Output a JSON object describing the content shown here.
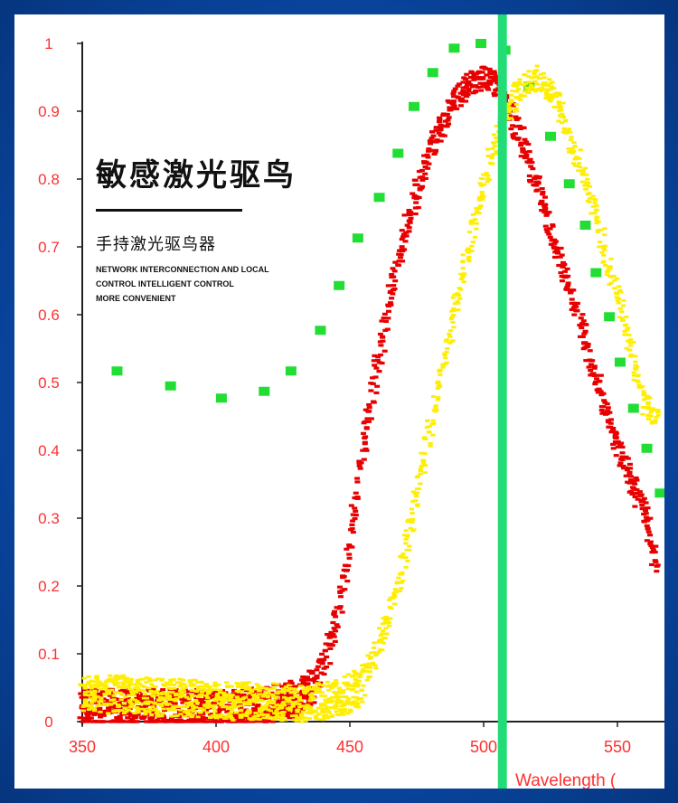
{
  "overlay": {
    "title": "敏感激光驱鸟",
    "subtitle": "手持激光驱鸟器",
    "tagline_1": "NETWORK INTERCONNECTION AND LOCAL",
    "tagline_2": "CONTROL INTELLIGENT CONTROL",
    "tagline_3": "MORE CONVENIENT"
  },
  "colors": {
    "frame": "#0a4aa8",
    "axis_text": "#ff3030",
    "series_red": "#e80000",
    "series_yellow": "#ffee00",
    "series_green": "#22dd33",
    "laser_line": "#22dd77"
  },
  "chart_data": {
    "type": "scatter",
    "xlabel": "Wavelength (",
    "ylabel": "",
    "xlim": [
      350,
      565
    ],
    "ylim": [
      0,
      1
    ],
    "x_ticks": [
      "350",
      "400",
      "450",
      "500",
      "550"
    ],
    "y_ticks": [
      "0",
      "0.1",
      "0.2",
      "0.3",
      "0.4",
      "0.5",
      "0.6",
      "0.7",
      "0.8",
      "0.9",
      "1"
    ],
    "grid": false,
    "vertical_marker_x": 507,
    "series": [
      {
        "color": "#22dd33",
        "marker": "square",
        "points": [
          [
            363,
            0.517
          ],
          [
            383,
            0.495
          ],
          [
            402,
            0.477
          ],
          [
            418,
            0.487
          ],
          [
            428,
            0.517
          ],
          [
            439,
            0.577
          ],
          [
            446,
            0.643
          ],
          [
            453,
            0.713
          ],
          [
            461,
            0.773
          ],
          [
            468,
            0.838
          ],
          [
            474,
            0.907
          ],
          [
            481,
            0.957
          ],
          [
            489,
            0.993
          ],
          [
            499,
            1.0
          ],
          [
            508,
            0.99
          ],
          [
            517,
            0.937
          ],
          [
            525,
            0.863
          ],
          [
            532,
            0.793
          ],
          [
            538,
            0.732
          ],
          [
            542,
            0.662
          ],
          [
            547,
            0.597
          ],
          [
            551,
            0.53
          ],
          [
            556,
            0.462
          ],
          [
            561,
            0.403
          ],
          [
            566,
            0.337
          ]
        ]
      },
      {
        "color": "#e80000",
        "marker": "dash",
        "points": [
          [
            350,
            0.02
          ],
          [
            360,
            0.02
          ],
          [
            370,
            0.02
          ],
          [
            380,
            0.02
          ],
          [
            390,
            0.02
          ],
          [
            400,
            0.02
          ],
          [
            410,
            0.022
          ],
          [
            420,
            0.025
          ],
          [
            425,
            0.03
          ],
          [
            430,
            0.035
          ],
          [
            435,
            0.05
          ],
          [
            440,
            0.08
          ],
          [
            445,
            0.15
          ],
          [
            450,
            0.26
          ],
          [
            455,
            0.4
          ],
          [
            460,
            0.52
          ],
          [
            465,
            0.63
          ],
          [
            470,
            0.71
          ],
          [
            475,
            0.78
          ],
          [
            480,
            0.84
          ],
          [
            485,
            0.88
          ],
          [
            490,
            0.92
          ],
          [
            495,
            0.94
          ],
          [
            500,
            0.95
          ],
          [
            505,
            0.94
          ],
          [
            510,
            0.9
          ],
          [
            515,
            0.85
          ],
          [
            520,
            0.79
          ],
          [
            525,
            0.73
          ],
          [
            530,
            0.66
          ],
          [
            535,
            0.6
          ],
          [
            540,
            0.53
          ],
          [
            545,
            0.47
          ],
          [
            550,
            0.41
          ],
          [
            555,
            0.36
          ],
          [
            560,
            0.31
          ],
          [
            565,
            0.23
          ]
        ]
      },
      {
        "color": "#ffee00",
        "marker": "cross",
        "points": [
          [
            350,
            0.04
          ],
          [
            360,
            0.04
          ],
          [
            370,
            0.04
          ],
          [
            380,
            0.035
          ],
          [
            390,
            0.035
          ],
          [
            400,
            0.03
          ],
          [
            410,
            0.03
          ],
          [
            420,
            0.03
          ],
          [
            430,
            0.025
          ],
          [
            440,
            0.03
          ],
          [
            450,
            0.04
          ],
          [
            455,
            0.06
          ],
          [
            460,
            0.1
          ],
          [
            465,
            0.16
          ],
          [
            470,
            0.24
          ],
          [
            475,
            0.33
          ],
          [
            480,
            0.43
          ],
          [
            485,
            0.53
          ],
          [
            490,
            0.62
          ],
          [
            495,
            0.71
          ],
          [
            500,
            0.79
          ],
          [
            505,
            0.86
          ],
          [
            510,
            0.91
          ],
          [
            515,
            0.94
          ],
          [
            520,
            0.95
          ],
          [
            525,
            0.93
          ],
          [
            530,
            0.89
          ],
          [
            535,
            0.83
          ],
          [
            540,
            0.77
          ],
          [
            545,
            0.7
          ],
          [
            550,
            0.63
          ],
          [
            555,
            0.55
          ],
          [
            560,
            0.47
          ],
          [
            565,
            0.45
          ]
        ]
      }
    ]
  }
}
